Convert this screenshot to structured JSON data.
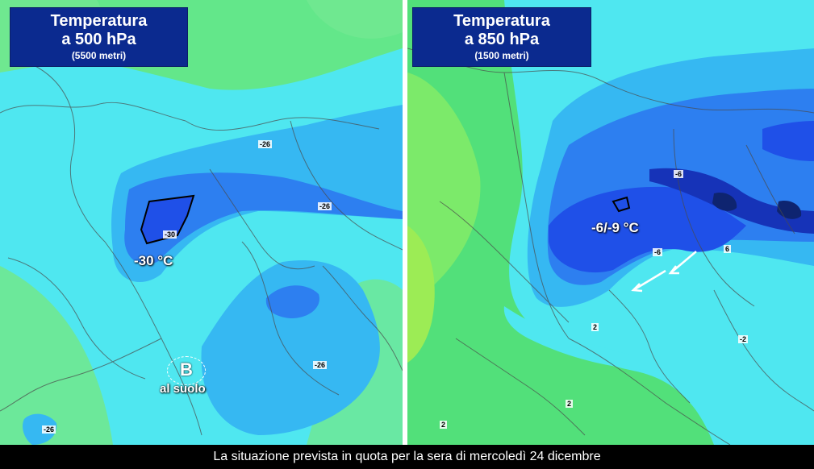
{
  "left_panel": {
    "title_line1": "Temperatura",
    "title_line2": "a 500 hPa",
    "title_line3": "(5500 metri)",
    "center_label": "-30 °C",
    "isotherms": [
      "-26",
      "-26",
      "-30",
      "-26",
      "-26"
    ],
    "low_letter": "B",
    "low_label": "al suolo"
  },
  "right_panel": {
    "title_line1": "Temperatura",
    "title_line2": "a 850 hPa",
    "title_line3": "(1500 metri)",
    "center_label": "-6/-9 °C",
    "isotherms": [
      "-6",
      "-6",
      "2",
      "2",
      "2",
      "6",
      "-2"
    ]
  },
  "caption": "La situazione prevista in quota per la sera di mercoledì 24 dicembre",
  "colors": {
    "title_bg": "#0b2a8f",
    "light_green": "#6fe890",
    "green": "#52e07a",
    "cyan": "#4fe7f0",
    "light_blue": "#36b8f2",
    "blue": "#2d7ff0",
    "dark_blue": "#1f50e8",
    "navy": "#1633b8"
  }
}
